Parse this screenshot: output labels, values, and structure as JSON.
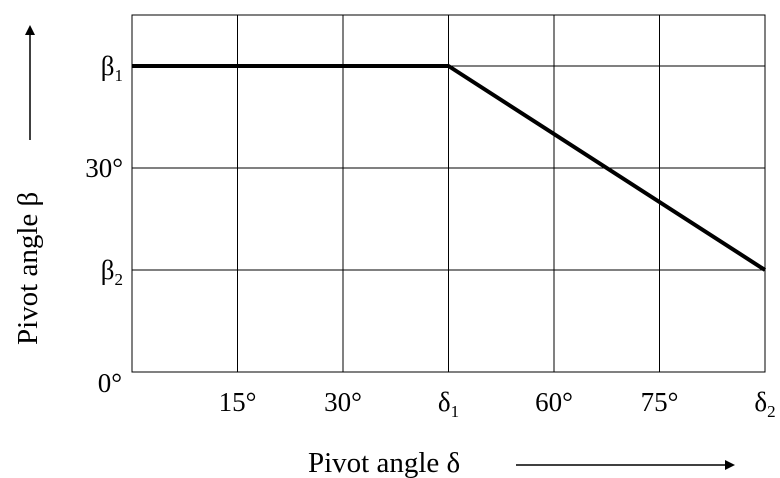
{
  "chart_data": {
    "type": "line",
    "xlabel": "Pivot angle δ",
    "ylabel": "Pivot angle β",
    "x_ticks": [
      {
        "value": 0,
        "label": "0°",
        "sub": ""
      },
      {
        "value": 15,
        "label": "15°",
        "sub": ""
      },
      {
        "value": 30,
        "label": "30°",
        "sub": ""
      },
      {
        "value": 45,
        "label": "δ",
        "sub": "1"
      },
      {
        "value": 60,
        "label": "60°",
        "sub": ""
      },
      {
        "value": 75,
        "label": "75°",
        "sub": ""
      },
      {
        "value": 90,
        "label": "δ",
        "sub": "2"
      }
    ],
    "y_ticks": [
      {
        "value": 0,
        "label": "",
        "sub": ""
      },
      {
        "value": 15,
        "label": "β",
        "sub": "2"
      },
      {
        "value": 30,
        "label": "30°",
        "sub": ""
      },
      {
        "value": 45,
        "label": "β",
        "sub": "1"
      }
    ],
    "xlim": [
      0,
      90
    ],
    "ylim": [
      0,
      52.5
    ],
    "grid": true,
    "series": [
      {
        "x": [
          0,
          45,
          90
        ],
        "y": [
          45,
          45,
          15
        ],
        "color": "#000000"
      }
    ]
  }
}
